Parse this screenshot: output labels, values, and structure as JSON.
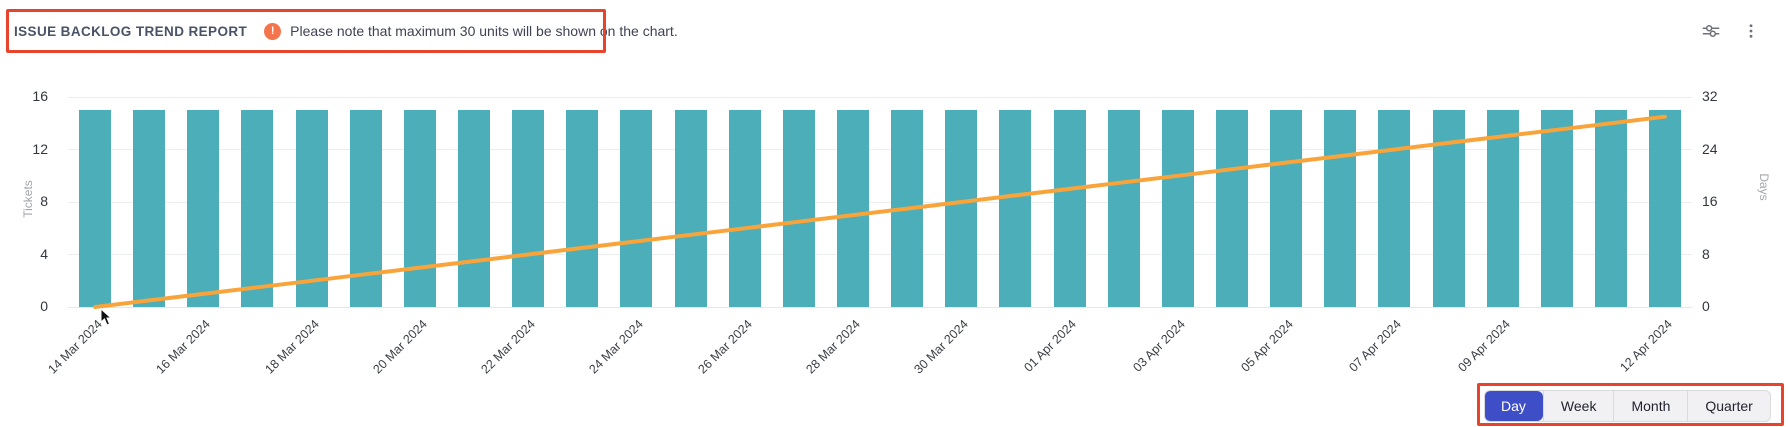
{
  "header": {
    "title": "ISSUE BACKLOG TREND REPORT",
    "note": "Please note that maximum 30 units will be shown on the chart.",
    "note_icon": "alert-icon"
  },
  "toolbar": {
    "icons": [
      "sliders-icon",
      "kebab-menu-icon"
    ]
  },
  "time_range": {
    "selected": "Day",
    "options": [
      "Day",
      "Week",
      "Month",
      "Quarter"
    ]
  },
  "colors": {
    "bar": "#4BAEB8",
    "line": "#F9A43B",
    "annotation": "#E8432D",
    "selected_button_bg": "#3E4EC6",
    "note_icon": "#F4744D"
  },
  "chart_data": {
    "type": "bar",
    "title": "ISSUE BACKLOG TREND REPORT",
    "n_slots": 30,
    "grid": true,
    "legend": false,
    "left_axis": {
      "label": "Tickets",
      "ticks": [
        0,
        4,
        8,
        12,
        16
      ],
      "min": 0,
      "max": 16
    },
    "right_axis": {
      "label": "Days",
      "ticks": [
        0,
        8,
        16,
        24,
        32
      ],
      "min": 0,
      "max": 32
    },
    "x_tick_labels": [
      {
        "slot": 0,
        "label": "14 Mar 2024"
      },
      {
        "slot": 2,
        "label": "16 Mar 2024"
      },
      {
        "slot": 4,
        "label": "18 Mar 2024"
      },
      {
        "slot": 6,
        "label": "20 Mar 2024"
      },
      {
        "slot": 8,
        "label": "22 Mar 2024"
      },
      {
        "slot": 10,
        "label": "24 Mar 2024"
      },
      {
        "slot": 12,
        "label": "26 Mar 2024"
      },
      {
        "slot": 14,
        "label": "28 Mar 2024"
      },
      {
        "slot": 16,
        "label": "30 Mar 2024"
      },
      {
        "slot": 18,
        "label": "01 Apr 2024"
      },
      {
        "slot": 20,
        "label": "03 Apr 2024"
      },
      {
        "slot": 22,
        "label": "05 Apr 2024"
      },
      {
        "slot": 24,
        "label": "07 Apr 2024"
      },
      {
        "slot": 26,
        "label": "09 Apr 2024"
      },
      {
        "slot": 29,
        "label": "12 Apr 2024"
      }
    ],
    "series": [
      {
        "name": "Tickets",
        "type": "bar",
        "axis": "left",
        "color": "#4BAEB8",
        "values": [
          15,
          15,
          15,
          15,
          15,
          15,
          15,
          15,
          15,
          15,
          15,
          15,
          15,
          15,
          15,
          15,
          15,
          15,
          15,
          15,
          15,
          15,
          15,
          15,
          15,
          15,
          15,
          15,
          15,
          15
        ]
      },
      {
        "name": "Days",
        "type": "line",
        "axis": "right",
        "color": "#F9A43B",
        "values": [
          0,
          1,
          2,
          3,
          4,
          5,
          6,
          7,
          8,
          9,
          10,
          11,
          12,
          13,
          14,
          15,
          16,
          17,
          18,
          19,
          20,
          21,
          22,
          23,
          24,
          25,
          26,
          27,
          28,
          29
        ]
      }
    ]
  }
}
